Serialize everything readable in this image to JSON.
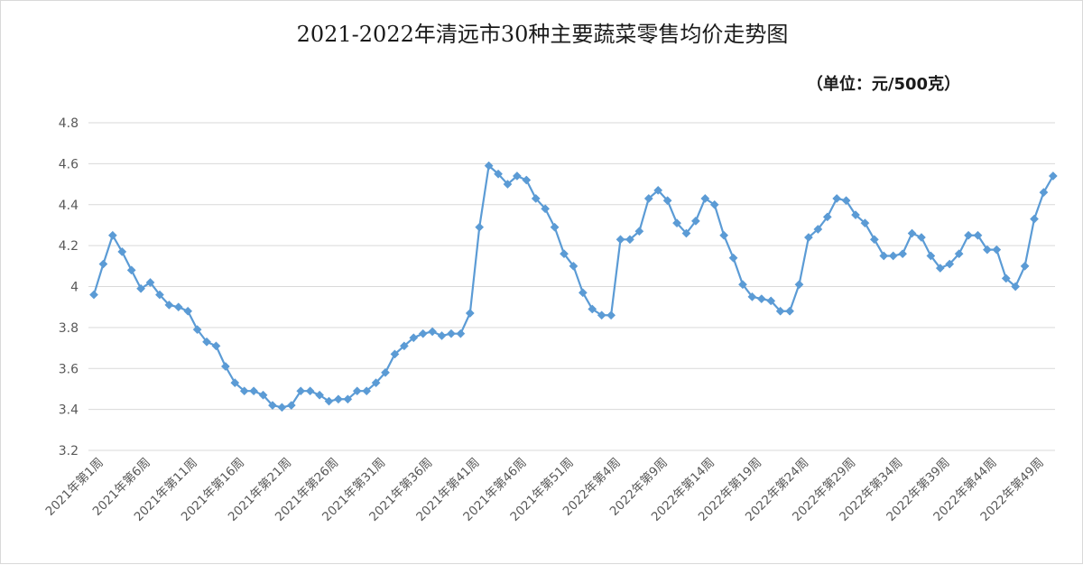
{
  "chart_data": {
    "type": "line",
    "title": "2021-2022年清远市30种主要蔬菜零售均价走势图",
    "unit": "（单位：元/500克）",
    "ylim": [
      3.2,
      4.8
    ],
    "yticks": [
      "3.2",
      "3.4",
      "3.6",
      "3.8",
      "4",
      "4.2",
      "4.4",
      "4.6",
      "4.8"
    ],
    "grid": true,
    "legend": "none",
    "color": "#5b9bd5",
    "grid_color": "#d9d9d9",
    "marker": "diamond",
    "x_tick_labels": [
      "2021年第1周",
      "2021年第6周",
      "2021年第11周",
      "2021年第16周",
      "2021年第21周",
      "2021年第26周",
      "2021年第31周",
      "2021年第36周",
      "2021年第41周",
      "2021年第46周",
      "2021年第51周",
      "2022年第4周",
      "2022年第9周",
      "2022年第14周",
      "2022年第19周",
      "2022年第24周",
      "2022年第29周",
      "2022年第34周",
      "2022年第39周",
      "2022年第44周",
      "2022年第49周"
    ],
    "series": [
      {
        "values": [
          3.96,
          4.11,
          4.25,
          4.17,
          4.08,
          3.99,
          4.02,
          3.96,
          3.91,
          3.9,
          3.88,
          3.79,
          3.73,
          3.71,
          3.61,
          3.53,
          3.49,
          3.49,
          3.47,
          3.42,
          3.41,
          3.42,
          3.49,
          3.49,
          3.47,
          3.44,
          3.45,
          3.45,
          3.49,
          3.49,
          3.53,
          3.58,
          3.67,
          3.71,
          3.75,
          3.77,
          3.78,
          3.76,
          3.77,
          3.77,
          3.87,
          4.29,
          4.59,
          4.55,
          4.5,
          4.54,
          4.52,
          4.43,
          4.38,
          4.29,
          4.16,
          4.1,
          3.97,
          3.89,
          3.86,
          3.86,
          4.23,
          4.23,
          4.27,
          4.43,
          4.47,
          4.42,
          4.31,
          4.26,
          4.32,
          4.43,
          4.4,
          4.25,
          4.14,
          4.01,
          3.95,
          3.94,
          3.93,
          3.88,
          3.88,
          4.01,
          4.24,
          4.28,
          4.34,
          4.43,
          4.42,
          4.35,
          4.31,
          4.23,
          4.15,
          4.15,
          4.16,
          4.26,
          4.24,
          4.15,
          4.09,
          4.11,
          4.16,
          4.25,
          4.25,
          4.18,
          4.18,
          4.04,
          4.0,
          4.1,
          4.33,
          4.46,
          4.54
        ]
      }
    ]
  }
}
